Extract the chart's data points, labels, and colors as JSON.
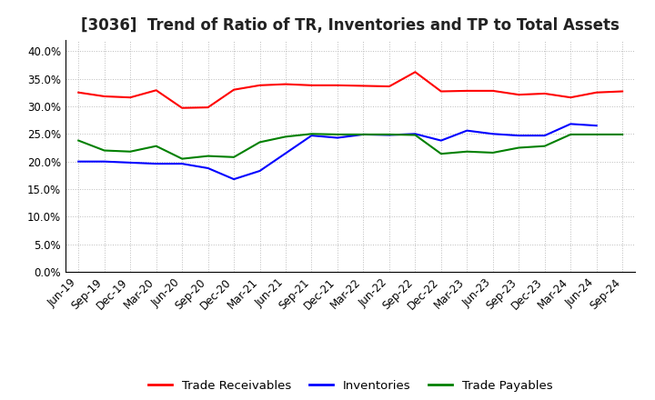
{
  "title": "[3036]  Trend of Ratio of TR, Inventories and TP to Total Assets",
  "x_labels": [
    "Jun-19",
    "Sep-19",
    "Dec-19",
    "Mar-20",
    "Jun-20",
    "Sep-20",
    "Dec-20",
    "Mar-21",
    "Jun-21",
    "Sep-21",
    "Dec-21",
    "Mar-22",
    "Jun-22",
    "Sep-22",
    "Dec-22",
    "Mar-23",
    "Jun-23",
    "Sep-23",
    "Dec-23",
    "Mar-24",
    "Jun-24",
    "Sep-24"
  ],
  "trade_receivables": [
    0.325,
    0.318,
    0.316,
    0.329,
    0.297,
    0.298,
    0.33,
    0.338,
    0.34,
    0.338,
    0.338,
    0.337,
    0.336,
    0.362,
    0.327,
    0.328,
    0.328,
    0.321,
    0.323,
    0.316,
    0.325,
    0.327
  ],
  "inventories": [
    0.2,
    0.2,
    0.198,
    0.196,
    0.196,
    0.188,
    0.168,
    0.183,
    0.215,
    0.247,
    0.243,
    0.249,
    0.248,
    0.25,
    0.238,
    0.256,
    0.25,
    0.247,
    0.247,
    0.268,
    0.265,
    null
  ],
  "trade_payables": [
    0.238,
    0.22,
    0.218,
    0.228,
    0.205,
    0.21,
    0.208,
    0.235,
    0.245,
    0.25,
    0.249,
    0.249,
    0.249,
    0.248,
    0.214,
    0.218,
    0.216,
    0.225,
    0.228,
    0.249,
    0.249,
    0.249
  ],
  "ylim": [
    0.0,
    0.42
  ],
  "yticks": [
    0.0,
    0.05,
    0.1,
    0.15,
    0.2,
    0.25,
    0.3,
    0.35,
    0.4
  ],
  "colors": {
    "trade_receivables": "#FF0000",
    "inventories": "#0000FF",
    "trade_payables": "#008000"
  },
  "legend_labels": [
    "Trade Receivables",
    "Inventories",
    "Trade Payables"
  ],
  "background_color": "#FFFFFF",
  "plot_bg_color": "#FFFFFF",
  "grid_color": "#BBBBBB",
  "title_fontsize": 12,
  "tick_fontsize": 8.5,
  "legend_fontsize": 9.5
}
